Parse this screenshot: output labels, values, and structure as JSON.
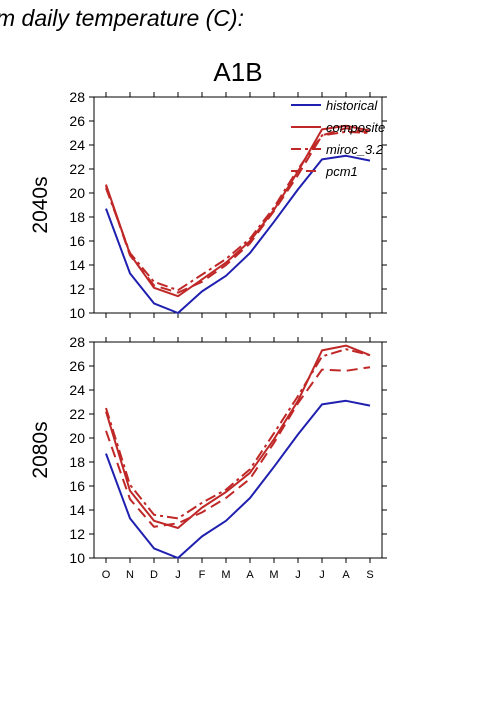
{
  "page": {
    "title": "m daily temperature (C):"
  },
  "colors": {
    "historical": "#2020b0",
    "projection": "#c02828",
    "axis": "#000000"
  },
  "chart_data": {
    "type": "line",
    "title": "A1B",
    "x": [
      "O",
      "N",
      "D",
      "J",
      "F",
      "M",
      "A",
      "M",
      "J",
      "J",
      "A",
      "S"
    ],
    "ylim": [
      10,
      28
    ],
    "yticks": [
      10,
      12,
      14,
      16,
      18,
      20,
      22,
      24,
      26,
      28
    ],
    "legend": {
      "placement": "top-right",
      "entries": [
        {
          "name": "historical",
          "style": "solid"
        },
        {
          "name": "composite",
          "style": "solid"
        },
        {
          "name": "miroc_3.2",
          "style": "dashdot"
        },
        {
          "name": "pcm1",
          "style": "dashed"
        }
      ]
    },
    "panels": [
      {
        "label": "2040s",
        "series": [
          {
            "name": "historical",
            "style": "solid",
            "color_key": "historical",
            "values": [
              18.7,
              13.3,
              10.8,
              10.0,
              11.8,
              13.1,
              15.0,
              17.6,
              20.3,
              22.8,
              23.1,
              22.7
            ]
          },
          {
            "name": "composite",
            "style": "solid",
            "color_key": "projection",
            "values": [
              20.7,
              14.9,
              12.1,
              11.4,
              12.8,
              14.2,
              16.0,
              18.6,
              21.8,
              25.3,
              25.6,
              25.2
            ]
          },
          {
            "name": "miroc_3.2",
            "style": "dashdot",
            "color_key": "projection",
            "values": [
              20.4,
              15.0,
              12.6,
              11.9,
              13.2,
              14.5,
              16.2,
              18.8,
              22.0,
              24.8,
              25.1,
              25.0
            ]
          },
          {
            "name": "pcm1",
            "style": "dashed",
            "color_key": "projection",
            "values": [
              20.6,
              14.8,
              12.3,
              11.7,
              12.6,
              14.0,
              15.8,
              18.5,
              21.5,
              24.8,
              25.4,
              25.0
            ]
          }
        ]
      },
      {
        "label": "2080s",
        "series": [
          {
            "name": "historical",
            "style": "solid",
            "color_key": "historical",
            "values": [
              18.7,
              13.3,
              10.8,
              10.0,
              11.8,
              13.1,
              15.0,
              17.6,
              20.3,
              22.8,
              23.1,
              22.7
            ]
          },
          {
            "name": "composite",
            "style": "solid",
            "color_key": "projection",
            "values": [
              22.2,
              15.6,
              13.1,
              12.5,
              14.2,
              15.5,
              17.1,
              19.9,
              23.1,
              27.3,
              27.7,
              26.9
            ]
          },
          {
            "name": "miroc_3.2",
            "style": "dashdot",
            "color_key": "projection",
            "values": [
              22.5,
              16.1,
              13.6,
              13.3,
              14.6,
              15.7,
              17.4,
              20.4,
              23.5,
              26.8,
              27.4,
              26.9
            ]
          },
          {
            "name": "pcm1",
            "style": "dashed",
            "color_key": "projection",
            "values": [
              20.6,
              14.9,
              12.6,
              12.9,
              13.8,
              15.0,
              16.6,
              19.6,
              22.9,
              25.7,
              25.6,
              25.9
            ]
          }
        ]
      }
    ]
  }
}
